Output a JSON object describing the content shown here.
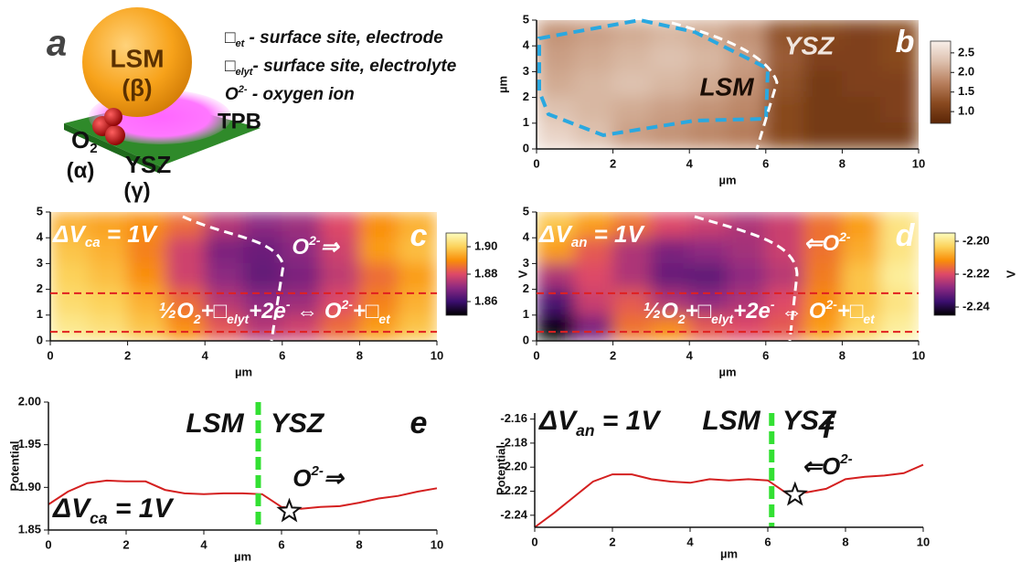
{
  "panel_a": {
    "panel_label": "a",
    "sphere": "LSM",
    "sphere_phase": "(β)",
    "gas": [
      {
        "text": "O"
      },
      {
        "text": "2",
        "shift": "sub"
      }
    ],
    "gas_phase": "(α)",
    "electrolyte": "YSZ",
    "electrolyte_phase": "(γ)",
    "tpb": "TPB",
    "legend": [
      [
        {
          "text": "□"
        },
        {
          "text": "et",
          "shift": "sub"
        },
        {
          "text": " - surface site, electrode"
        }
      ],
      [
        {
          "text": "□"
        },
        {
          "text": "elyt",
          "shift": "sub"
        },
        {
          "text": "- surface site, electrolyte"
        }
      ],
      [
        {
          "text": "O"
        },
        {
          "text": "2-",
          "shift": "super"
        },
        {
          "text": " - oxygen ion"
        }
      ]
    ]
  },
  "chart_data": [
    {
      "type": "heatmap",
      "panel_label": "b",
      "xlim": [
        0,
        10
      ],
      "ylim": [
        0,
        5
      ],
      "xticks": [
        0,
        2,
        4,
        6,
        8,
        10
      ],
      "yticks": [
        0,
        1,
        2,
        3,
        4,
        5
      ],
      "xlabel": "µm",
      "ylabel": "µm",
      "z": [
        [
          1.9,
          2.0,
          2.1,
          2.2,
          2.1,
          1.9,
          1.3,
          1.2,
          1.1,
          1.2
        ],
        [
          2.0,
          2.1,
          2.2,
          2.3,
          2.2,
          2.0,
          1.4,
          1.1,
          1.1,
          1.2
        ],
        [
          2.1,
          2.2,
          2.3,
          2.2,
          2.1,
          1.9,
          1.3,
          1.0,
          1.1,
          1.1
        ],
        [
          2.3,
          2.2,
          2.1,
          2.0,
          1.9,
          1.8,
          1.2,
          1.0,
          1.0,
          1.1
        ],
        [
          2.5,
          2.3,
          2.0,
          1.9,
          1.8,
          1.7,
          1.2,
          1.0,
          1.0,
          1.0
        ]
      ],
      "clim": [
        0.7,
        2.8
      ],
      "colormap": [
        "#5a2506",
        "#8a4a20",
        "#b98160",
        "#ddc0ad",
        "#f8efea"
      ],
      "cticks": [
        {
          "value": 1,
          "label": "1.0"
        },
        1.5,
        {
          "value": 2,
          "label": "2.0"
        },
        2.5
      ],
      "annotations": [
        {
          "text": "LSM"
        },
        {
          "text": "YSZ"
        }
      ]
    },
    {
      "type": "heatmap",
      "panel_label": "c",
      "xlim": [
        0,
        10
      ],
      "ylim": [
        0,
        5
      ],
      "xticks": [
        0,
        2,
        4,
        6,
        8,
        10
      ],
      "yticks": [
        0,
        1,
        2,
        3,
        4,
        5
      ],
      "xlabel": "µm",
      "z": [
        [
          1.895,
          1.893,
          1.89,
          1.885,
          1.875,
          1.87,
          1.872,
          1.88,
          1.89,
          1.895
        ],
        [
          1.898,
          1.895,
          1.888,
          1.878,
          1.868,
          1.866,
          1.87,
          1.878,
          1.892,
          1.897
        ],
        [
          1.9,
          1.897,
          1.89,
          1.878,
          1.87,
          1.865,
          1.868,
          1.876,
          1.885,
          1.892
        ],
        [
          1.902,
          1.9,
          1.895,
          1.885,
          1.875,
          1.87,
          1.872,
          1.88,
          1.888,
          1.895
        ],
        [
          1.905,
          1.903,
          1.898,
          1.89,
          1.882,
          1.875,
          1.878,
          1.885,
          1.892,
          1.898
        ]
      ],
      "clim": [
        1.85,
        1.91
      ],
      "colormap": [
        "#000000",
        "#3b0f6f",
        "#8c2981",
        "#de4968",
        "#f98e09",
        "#fcd25a",
        "#fcfdbf"
      ],
      "cticks": [
        1.86,
        1.88,
        {
          "value": 1.9,
          "label": "1.90"
        }
      ],
      "colorbar_label": "V",
      "band": [
        0.35,
        1.85
      ],
      "band_color": "#e02020",
      "annotations": [
        {
          "segments": [
            {
              "text": "ΔV"
            },
            {
              "text": "ca",
              "shift": "sub"
            },
            {
              "text": " = 1V"
            }
          ]
        },
        {
          "segments": [
            {
              "text": "O"
            },
            {
              "text": "2-",
              "shift": "super"
            },
            {
              "text": "⇒"
            }
          ]
        },
        {
          "segments": [
            {
              "text": "½"
            },
            {
              "text": "O"
            },
            {
              "text": "2",
              "shift": "sub"
            },
            {
              "text": "+□"
            },
            {
              "text": "elyt",
              "shift": "sub"
            },
            {
              "text": "+2e"
            },
            {
              "text": "-",
              "shift": "super"
            },
            {
              "text": " ⇔ O"
            },
            {
              "text": "2-",
              "shift": "super"
            },
            {
              "text": "+□"
            },
            {
              "text": "et",
              "shift": "sub"
            }
          ]
        }
      ]
    },
    {
      "type": "heatmap",
      "panel_label": "d",
      "xlim": [
        0,
        10
      ],
      "ylim": [
        0,
        5
      ],
      "xticks": [
        0,
        2,
        4,
        6,
        8,
        10
      ],
      "yticks": [
        0,
        1,
        2,
        3,
        4,
        5
      ],
      "xlabel": "µm",
      "z": [
        [
          -2.205,
          -2.21,
          -2.215,
          -2.22,
          -2.222,
          -2.225,
          -2.222,
          -2.215,
          -2.21,
          -2.2
        ],
        [
          -2.21,
          -2.218,
          -2.225,
          -2.23,
          -2.228,
          -2.226,
          -2.222,
          -2.215,
          -2.208,
          -2.2
        ],
        [
          -2.225,
          -2.22,
          -2.225,
          -2.232,
          -2.233,
          -2.228,
          -2.224,
          -2.214,
          -2.205,
          -2.198
        ],
        [
          -2.235,
          -2.222,
          -2.218,
          -2.225,
          -2.228,
          -2.225,
          -2.22,
          -2.212,
          -2.205,
          -2.2
        ],
        [
          -2.245,
          -2.23,
          -2.215,
          -2.212,
          -2.218,
          -2.22,
          -2.218,
          -2.21,
          -2.203,
          -2.198
        ]
      ],
      "clim": [
        -2.245,
        -2.195
      ],
      "colormap": [
        "#000000",
        "#3b0f6f",
        "#8c2981",
        "#de4968",
        "#f98e09",
        "#fcd25a",
        "#fcfdbf"
      ],
      "cticks": [
        {
          "value": -2.2,
          "label": "-2.20"
        },
        -2.22,
        -2.24
      ],
      "colorbar_label": "V",
      "band": [
        0.35,
        1.85
      ],
      "band_color": "#e02020",
      "annotations": [
        {
          "segments": [
            {
              "text": "ΔV"
            },
            {
              "text": "an",
              "shift": "sub"
            },
            {
              "text": " = 1V"
            }
          ]
        },
        {
          "segments": [
            {
              "text": "⇐O"
            },
            {
              "text": "2-",
              "shift": "super"
            }
          ]
        },
        {
          "segments": [
            {
              "text": "½"
            },
            {
              "text": "O"
            },
            {
              "text": "2",
              "shift": "sub"
            },
            {
              "text": "+□"
            },
            {
              "text": "elyt",
              "shift": "sub"
            },
            {
              "text": "+2e"
            },
            {
              "text": "-",
              "shift": "super"
            },
            {
              "text": " ⇔ O"
            },
            {
              "text": "2-",
              "shift": "super"
            },
            {
              "text": "+□"
            },
            {
              "text": "et",
              "shift": "sub"
            }
          ]
        }
      ]
    },
    {
      "type": "line",
      "panel_label": "e",
      "xlim": [
        0,
        10
      ],
      "ylim": [
        1.85,
        2.0
      ],
      "xticks": [
        0,
        2,
        4,
        6,
        8,
        10
      ],
      "yticks": [
        1.85,
        {
          "value": 1.9,
          "label": "1.90"
        },
        1.95,
        {
          "value": 2,
          "label": "2.00"
        }
      ],
      "xlabel": "µm",
      "ylabel": "Potential",
      "color": "#d42020",
      "x": [
        0,
        0.5,
        1,
        1.5,
        2,
        2.5,
        3,
        3.5,
        4,
        4.5,
        5,
        5.5,
        6,
        6.5,
        7,
        7.5,
        8,
        8.5,
        9,
        9.5,
        10
      ],
      "values": [
        1.88,
        1.895,
        1.905,
        1.908,
        1.907,
        1.907,
        1.897,
        1.893,
        1.892,
        1.893,
        1.893,
        1.892,
        1.877,
        1.875,
        1.877,
        1.878,
        1.882,
        1.887,
        1.89,
        1.895,
        1.899
      ],
      "boundary_x": 5.4,
      "boundary_color": "#33e033",
      "star": {
        "x": 6.2,
        "y": 1.872
      },
      "annotations": [
        {
          "text": "LSM"
        },
        {
          "text": "YSZ"
        },
        {
          "segments": [
            {
              "text": "O"
            },
            {
              "text": "2-",
              "shift": "super"
            },
            {
              "text": "⇒"
            }
          ]
        },
        {
          "segments": [
            {
              "text": "ΔV"
            },
            {
              "text": "ca",
              "shift": "sub"
            },
            {
              "text": " = 1V"
            }
          ]
        }
      ]
    },
    {
      "type": "line",
      "panel_label": "f",
      "xlim": [
        0,
        10
      ],
      "ylim": [
        -2.25,
        -2.155
      ],
      "xticks": [
        0,
        2,
        4,
        6,
        8,
        10
      ],
      "yticks": [
        -2.16,
        -2.18,
        {
          "value": -2.2,
          "label": "-2.20"
        },
        -2.22,
        -2.24
      ],
      "xlabel": "µm",
      "ylabel": "Potential",
      "color": "#d42020",
      "x": [
        0,
        0.5,
        1,
        1.5,
        2,
        2.5,
        3,
        3.5,
        4,
        4.5,
        5,
        5.5,
        6,
        6.5,
        7,
        7.5,
        8,
        8.5,
        9,
        9.5,
        10
      ],
      "values": [
        -2.25,
        -2.238,
        -2.225,
        -2.212,
        -2.206,
        -2.206,
        -2.21,
        -2.212,
        -2.213,
        -2.21,
        -2.211,
        -2.21,
        -2.211,
        -2.222,
        -2.221,
        -2.218,
        -2.21,
        -2.208,
        -2.207,
        -2.205,
        -2.198
      ],
      "boundary_x": 6.1,
      "boundary_color": "#33e033",
      "star": {
        "x": 6.7,
        "y": -2.223
      },
      "annotations": [
        {
          "segments": [
            {
              "text": "ΔV"
            },
            {
              "text": "an",
              "shift": "sub"
            },
            {
              "text": " = 1V"
            }
          ]
        },
        {
          "text": "LSM"
        },
        {
          "text": "YSZ"
        },
        {
          "segments": [
            {
              "text": "⇐O"
            },
            {
              "text": "2-",
              "shift": "super"
            }
          ]
        }
      ]
    }
  ]
}
